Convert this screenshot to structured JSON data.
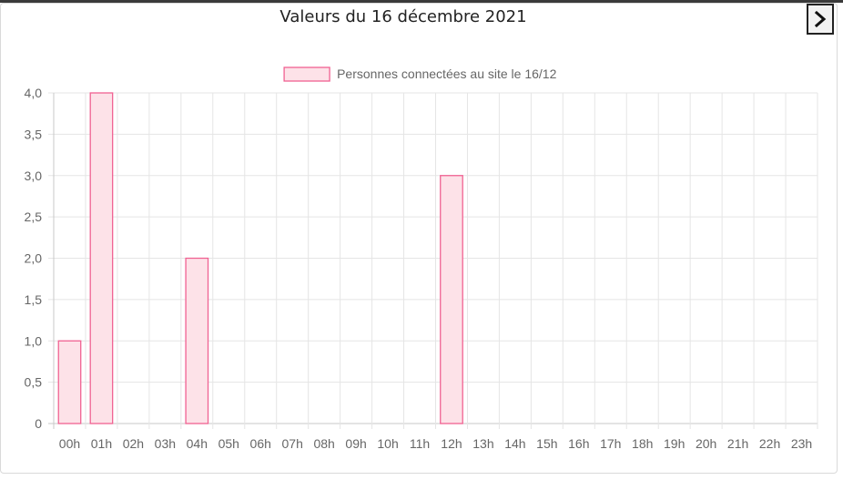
{
  "page": {
    "title": "Valeurs du 16 décembre 2021"
  },
  "nav": {
    "next_icon": "chevron-right-icon"
  },
  "chart_data": {
    "type": "bar",
    "title": "",
    "xlabel": "",
    "ylabel": "",
    "categories": [
      "00h",
      "01h",
      "02h",
      "03h",
      "04h",
      "05h",
      "06h",
      "07h",
      "08h",
      "09h",
      "10h",
      "11h",
      "12h",
      "13h",
      "14h",
      "15h",
      "16h",
      "17h",
      "18h",
      "19h",
      "20h",
      "21h",
      "22h",
      "23h"
    ],
    "series": [
      {
        "name": "Personnes connectées au site le 16/12",
        "values": [
          1,
          4,
          0,
          0,
          2,
          0,
          0,
          0,
          0,
          0,
          0,
          0,
          3,
          0,
          0,
          0,
          0,
          0,
          0,
          0,
          0,
          0,
          0,
          0
        ]
      }
    ],
    "ylim": [
      0,
      4
    ],
    "yticks": [
      "0",
      "0,5",
      "1,0",
      "1,5",
      "2,0",
      "2,5",
      "3,0",
      "3,5",
      "4,0"
    ],
    "grid": true,
    "legend_position": "top-center",
    "colors": {
      "bar_fill": "#fde2e8",
      "bar_stroke": "#f06292",
      "grid": "#e5e5e5",
      "tick_text": "#666666",
      "legend_text": "#666666"
    }
  }
}
